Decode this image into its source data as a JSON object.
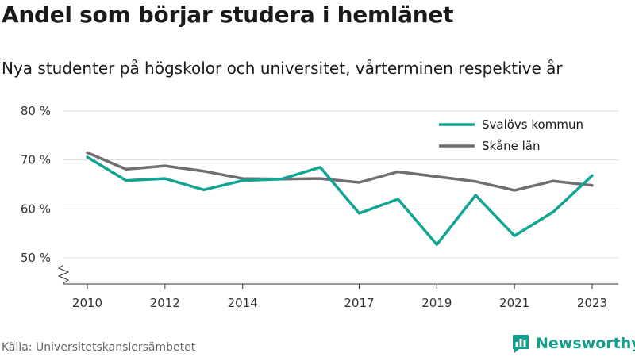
{
  "title": "Andel som börjar studera i hemlänet",
  "subtitle": "Nya studenter på högskolor och universitet, vårterminen respektive år",
  "source": "Källa: Universitetskanslersämbetet",
  "brand": {
    "name": "Newsworthy",
    "icon": "newsworthy-logo-icon"
  },
  "colors": {
    "svalov": "#12a594",
    "skane": "#6e6e73",
    "grid": "#dddddd"
  },
  "chart_data": {
    "type": "line",
    "title": "",
    "xlabel": "",
    "ylabel": "",
    "x": [
      2010,
      2011,
      2012,
      2013,
      2014,
      2015,
      2016,
      2017,
      2018,
      2019,
      2020,
      2021,
      2022,
      2023
    ],
    "x_ticks": [
      2010,
      2012,
      2014,
      2017,
      2019,
      2021,
      2023
    ],
    "x_tick_labels": [
      "2010",
      "2012",
      "2014",
      "2017",
      "2019",
      "2021",
      "2023"
    ],
    "y_ticks": [
      50,
      60,
      70,
      80
    ],
    "y_tick_labels": [
      "50 %",
      "60 %",
      "70 %",
      "80 %"
    ],
    "ylim": [
      45,
      80
    ],
    "y_axis_break": true,
    "grid": true,
    "legend_position": "top-right",
    "series": [
      {
        "name": "Svalövs kommun",
        "color": "#12a594",
        "values": [
          70.6,
          65.8,
          66.2,
          63.9,
          65.8,
          66.1,
          68.5,
          59.1,
          62.0,
          52.7,
          62.8,
          54.5,
          59.4,
          66.8
        ]
      },
      {
        "name": "Skåne län",
        "color": "#6e6e73",
        "values": [
          71.5,
          68.1,
          68.8,
          67.7,
          66.2,
          66.1,
          66.2,
          65.4,
          67.6,
          66.6,
          65.6,
          63.8,
          65.7,
          64.8
        ]
      }
    ]
  }
}
